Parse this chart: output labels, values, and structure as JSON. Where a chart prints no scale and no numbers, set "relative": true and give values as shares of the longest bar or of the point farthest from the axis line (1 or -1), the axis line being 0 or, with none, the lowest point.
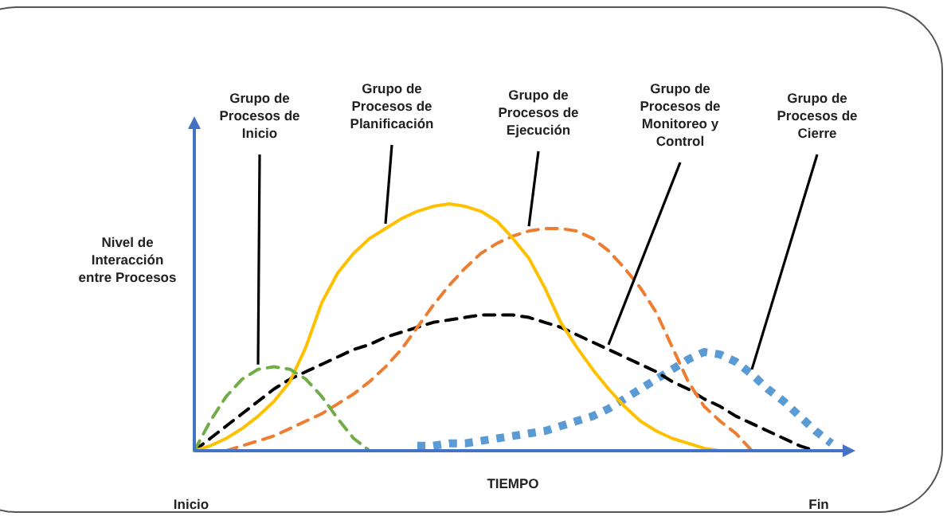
{
  "chart_data": {
    "type": "line",
    "relative": true,
    "xlabel": "TIEMPO",
    "ylabel": "Nivel de Interacción entre Procesos",
    "annotations": [
      "Inicio",
      "Fin"
    ],
    "categories": [
      null,
      null,
      null,
      null,
      null,
      null,
      null,
      null,
      null,
      null,
      null,
      null,
      null,
      null,
      null,
      null,
      null,
      null,
      null,
      null,
      null,
      null,
      null,
      null,
      null,
      null,
      null,
      null,
      null,
      null,
      null,
      null,
      null,
      null,
      null,
      null,
      null,
      null,
      null,
      null,
      null
    ],
    "series": [
      {
        "name": "Grupo de Procesos de Inicio",
        "color": "#70ad47",
        "line_style": "dashed",
        "values": [
          0,
          0.12,
          0.22,
          0.29,
          0.33,
          0.34,
          0.33,
          0.29,
          0.22,
          0.13,
          0.05,
          0,
          null,
          null,
          null,
          null,
          null,
          null,
          null,
          null,
          null,
          null,
          null,
          null,
          null,
          null,
          null,
          null,
          null,
          null,
          null,
          null,
          null,
          null,
          null,
          null,
          null,
          null,
          null,
          null,
          null
        ]
      },
      {
        "name": "Grupo de Procesos de Planificación",
        "color": "#ffc000",
        "line_style": "solid",
        "values": [
          0,
          0.02,
          0.05,
          0.09,
          0.14,
          0.2,
          0.28,
          0.42,
          0.6,
          0.72,
          0.8,
          0.86,
          0.9,
          0.94,
          0.97,
          0.99,
          1,
          0.99,
          0.97,
          0.93,
          0.86,
          0.78,
          0.66,
          0.52,
          0.42,
          0.33,
          0.25,
          0.18,
          0.12,
          0.08,
          0.05,
          0.03,
          0.01,
          0,
          null,
          null,
          null,
          null,
          null,
          null,
          null
        ]
      },
      {
        "name": "Grupo de Procesos de Ejecución",
        "color": "#ed7d31",
        "line_style": "dashed",
        "values": [
          null,
          null,
          0,
          0.02,
          0.04,
          0.06,
          0.09,
          0.12,
          0.15,
          0.19,
          0.23,
          0.28,
          0.34,
          0.41,
          0.5,
          0.59,
          0.67,
          0.74,
          0.8,
          0.84,
          0.87,
          0.89,
          0.9,
          0.9,
          0.89,
          0.86,
          0.81,
          0.74,
          0.66,
          0.56,
          0.42,
          0.28,
          0.18,
          0.12,
          0.07,
          0,
          null,
          null,
          null,
          null,
          null
        ]
      },
      {
        "name": "Grupo de Procesos de Monitoreo y Control",
        "color": "#000000",
        "line_style": "dashed",
        "values": [
          0,
          0.05,
          0.1,
          0.15,
          0.2,
          0.25,
          0.29,
          0.32,
          0.35,
          0.38,
          0.41,
          0.43,
          0.46,
          0.48,
          0.5,
          0.52,
          0.53,
          0.54,
          0.55,
          0.55,
          0.55,
          0.54,
          0.52,
          0.5,
          0.47,
          0.44,
          0.41,
          0.38,
          0.35,
          0.32,
          0.28,
          0.25,
          0.21,
          0.18,
          0.14,
          0.11,
          0.08,
          0.05,
          0.02,
          0,
          null
        ]
      },
      {
        "name": "Grupo de Procesos de Cierre",
        "color": "#5b9bd5",
        "line_style": "dotted",
        "values": [
          null,
          null,
          null,
          null,
          null,
          null,
          null,
          null,
          null,
          null,
          null,
          null,
          null,
          null,
          0.02,
          0.02,
          0.03,
          0.03,
          0.04,
          0.05,
          0.06,
          0.07,
          0.08,
          0.1,
          0.12,
          0.14,
          0.17,
          0.21,
          0.25,
          0.29,
          0.33,
          0.37,
          0.4,
          0.39,
          0.36,
          0.31,
          0.25,
          0.2,
          0.14,
          0.08,
          0.03
        ]
      }
    ]
  }
}
